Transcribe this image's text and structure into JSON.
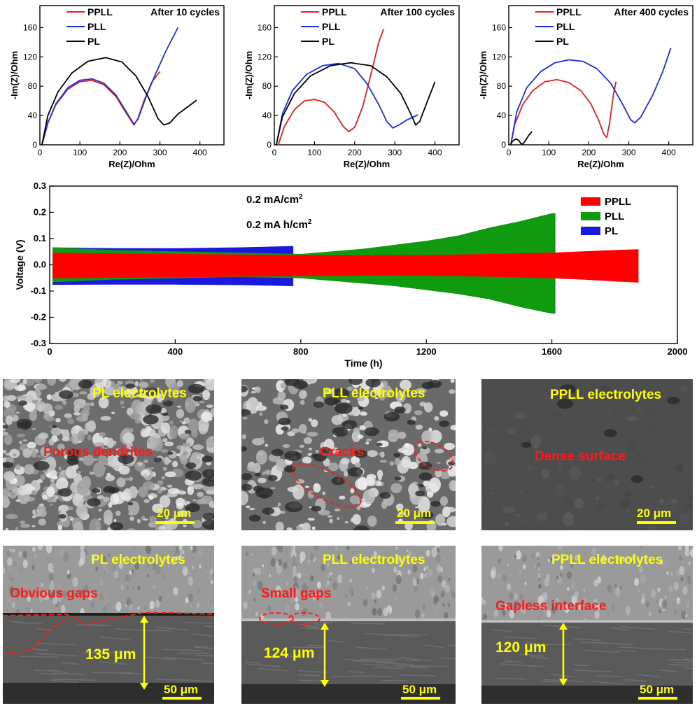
{
  "chart_data": [
    {
      "type": "line",
      "cycle_label": "After 10 cycles",
      "xlabel": "Re(Z)/Ohm",
      "ylabel": "-Im(Z)/Ohm",
      "xlim": [
        0,
        460
      ],
      "ylim": [
        0,
        190
      ],
      "xticks": [
        0,
        100,
        200,
        300,
        400
      ],
      "yticks": [
        0,
        40,
        80,
        120,
        160
      ],
      "series": [
        {
          "name": "PPLL",
          "color": "#ee1c1c",
          "x": [
            5,
            20,
            40,
            70,
            100,
            130,
            160,
            190,
            215,
            235,
            245,
            260,
            280,
            300
          ],
          "y": [
            0,
            30,
            55,
            76,
            86,
            88,
            82,
            66,
            44,
            27,
            36,
            60,
            86,
            100
          ]
        },
        {
          "name": "PLL",
          "color": "#1c2ee6",
          "x": [
            5,
            20,
            40,
            70,
            100,
            130,
            160,
            190,
            215,
            235,
            245,
            265,
            290,
            315,
            345
          ],
          "y": [
            0,
            30,
            56,
            78,
            88,
            90,
            84,
            68,
            46,
            28,
            35,
            65,
            98,
            128,
            160
          ]
        },
        {
          "name": "PL",
          "color": "#000000",
          "x": [
            5,
            20,
            45,
            80,
            120,
            165,
            205,
            240,
            270,
            295,
            310,
            325,
            345,
            370,
            392
          ],
          "y": [
            0,
            40,
            72,
            98,
            114,
            119,
            113,
            94,
            66,
            36,
            27,
            30,
            42,
            52,
            61
          ]
        }
      ]
    },
    {
      "type": "line",
      "cycle_label": "After 100 cycles",
      "xlabel": "Re(Z)/Ohm",
      "ylabel": "-Im(Z)/Ohm",
      "xlim": [
        0,
        460
      ],
      "ylim": [
        0,
        190
      ],
      "xticks": [
        0,
        100,
        200,
        300,
        400
      ],
      "yticks": [
        0,
        40,
        80,
        120,
        160
      ],
      "series": [
        {
          "name": "PPLL",
          "color": "#ee1c1c",
          "x": [
            10,
            25,
            50,
            75,
            100,
            125,
            150,
            170,
            185,
            200,
            220,
            240,
            260,
            272
          ],
          "y": [
            0,
            25,
            48,
            60,
            62,
            58,
            44,
            26,
            18,
            24,
            52,
            95,
            140,
            158
          ]
        },
        {
          "name": "PLL",
          "color": "#1c2ee6",
          "x": [
            5,
            20,
            45,
            80,
            120,
            160,
            200,
            230,
            260,
            280,
            295,
            310,
            330,
            358
          ],
          "y": [
            0,
            42,
            74,
            96,
            108,
            111,
            104,
            84,
            55,
            32,
            23,
            27,
            34,
            41
          ]
        },
        {
          "name": "PL",
          "color": "#000000",
          "x": [
            5,
            20,
            50,
            90,
            140,
            190,
            240,
            280,
            315,
            340,
            352,
            362,
            380,
            400
          ],
          "y": [
            0,
            38,
            70,
            94,
            108,
            112,
            108,
            93,
            70,
            42,
            27,
            32,
            58,
            86
          ]
        }
      ]
    },
    {
      "type": "line",
      "cycle_label": "After 400 cycles",
      "xlabel": "Re(Z)/Ohm",
      "ylabel": "-Im(Z)/Ohm",
      "xlim": [
        0,
        460
      ],
      "ylim": [
        0,
        190
      ],
      "xticks": [
        0,
        100,
        200,
        300,
        400
      ],
      "yticks": [
        0,
        40,
        80,
        120,
        160
      ],
      "series": [
        {
          "name": "PPLL",
          "color": "#ee1c1c",
          "x": [
            5,
            15,
            35,
            60,
            90,
            120,
            150,
            180,
            205,
            225,
            238,
            245,
            252,
            262,
            268
          ],
          "y": [
            0,
            28,
            55,
            74,
            86,
            89,
            85,
            74,
            56,
            33,
            14,
            10,
            30,
            70,
            86
          ]
        },
        {
          "name": "PLL",
          "color": "#1c2ee6",
          "x": [
            5,
            20,
            45,
            80,
            115,
            150,
            185,
            220,
            255,
            285,
            305,
            315,
            330,
            360,
            385,
            405
          ],
          "y": [
            0,
            45,
            78,
            100,
            112,
            116,
            114,
            104,
            84,
            55,
            34,
            30,
            38,
            68,
            100,
            132
          ]
        },
        {
          "name": "PL",
          "color": "#000000",
          "x": [
            5,
            8,
            12,
            18,
            25,
            30,
            35,
            42,
            50,
            58
          ],
          "y": [
            0,
            4,
            6,
            8,
            6,
            2,
            1,
            6,
            13,
            18
          ]
        }
      ]
    }
  ],
  "cycling": {
    "type": "area",
    "xlabel": "Time (h)",
    "ylabel": "Voltage (V)",
    "xlim": [
      0,
      2000
    ],
    "ylim": [
      -0.3,
      0.3
    ],
    "xticks": [
      0,
      400,
      800,
      1200,
      1600,
      2000
    ],
    "yticks": [
      0.3,
      0.2,
      0.1,
      0.0,
      -0.1,
      -0.2,
      -0.3
    ],
    "current_density": "0.2 mA/cm",
    "capacity": "0.2 mA h/cm",
    "superscript": "2",
    "series": [
      {
        "name": "PPLL",
        "color": "#ff0000",
        "x": [
          10,
          200,
          400,
          600,
          800,
          1000,
          1200,
          1400,
          1600,
          1700,
          1800,
          1875
        ],
        "upper": [
          0.045,
          0.042,
          0.04,
          0.038,
          0.036,
          0.035,
          0.036,
          0.04,
          0.045,
          0.05,
          0.055,
          0.058
        ],
        "lower": [
          -0.05,
          -0.048,
          -0.046,
          -0.044,
          -0.042,
          -0.04,
          -0.04,
          -0.044,
          -0.05,
          -0.055,
          -0.062,
          -0.066
        ]
      },
      {
        "name": "PLL",
        "color": "#109a10",
        "x": [
          10,
          200,
          400,
          600,
          800,
          900,
          1000,
          1100,
          1200,
          1300,
          1400,
          1500,
          1600,
          1610
        ],
        "upper": [
          0.065,
          0.055,
          0.05,
          0.045,
          0.04,
          0.05,
          0.06,
          0.075,
          0.09,
          0.11,
          0.14,
          0.165,
          0.195,
          0.195
        ],
        "lower": [
          -0.065,
          -0.055,
          -0.05,
          -0.045,
          -0.05,
          -0.06,
          -0.07,
          -0.08,
          -0.095,
          -0.11,
          -0.13,
          -0.16,
          -0.185,
          -0.185
        ]
      },
      {
        "name": "PL",
        "color": "#1a1adf",
        "x": [
          10,
          200,
          400,
          600,
          700,
          775
        ],
        "upper": [
          0.065,
          0.062,
          0.062,
          0.065,
          0.068,
          0.07
        ],
        "lower": [
          -0.075,
          -0.074,
          -0.074,
          -0.076,
          -0.078,
          -0.08
        ]
      }
    ]
  },
  "sem": {
    "surface": [
      {
        "label": "PL electrolytes",
        "note": "Porous dendrites",
        "scale": "20 μm"
      },
      {
        "label": "PLL electrolytes",
        "note": "Cracks",
        "scale": "20 μm"
      },
      {
        "label": "PPLL electrolytes",
        "note": "Dense surface",
        "scale": "20 μm"
      }
    ],
    "cross": [
      {
        "label": "PL electrolytes",
        "note": "Obvious gaps",
        "thickness": "135 μm",
        "scale": "50 μm"
      },
      {
        "label": "PLL electrolytes",
        "note": "Small gaps",
        "thickness": "124 μm",
        "scale": "50 μm"
      },
      {
        "label": "PPLL electrolytes",
        "note": "Gapless interface",
        "thickness": "120 μm",
        "scale": "50 μm"
      }
    ]
  }
}
